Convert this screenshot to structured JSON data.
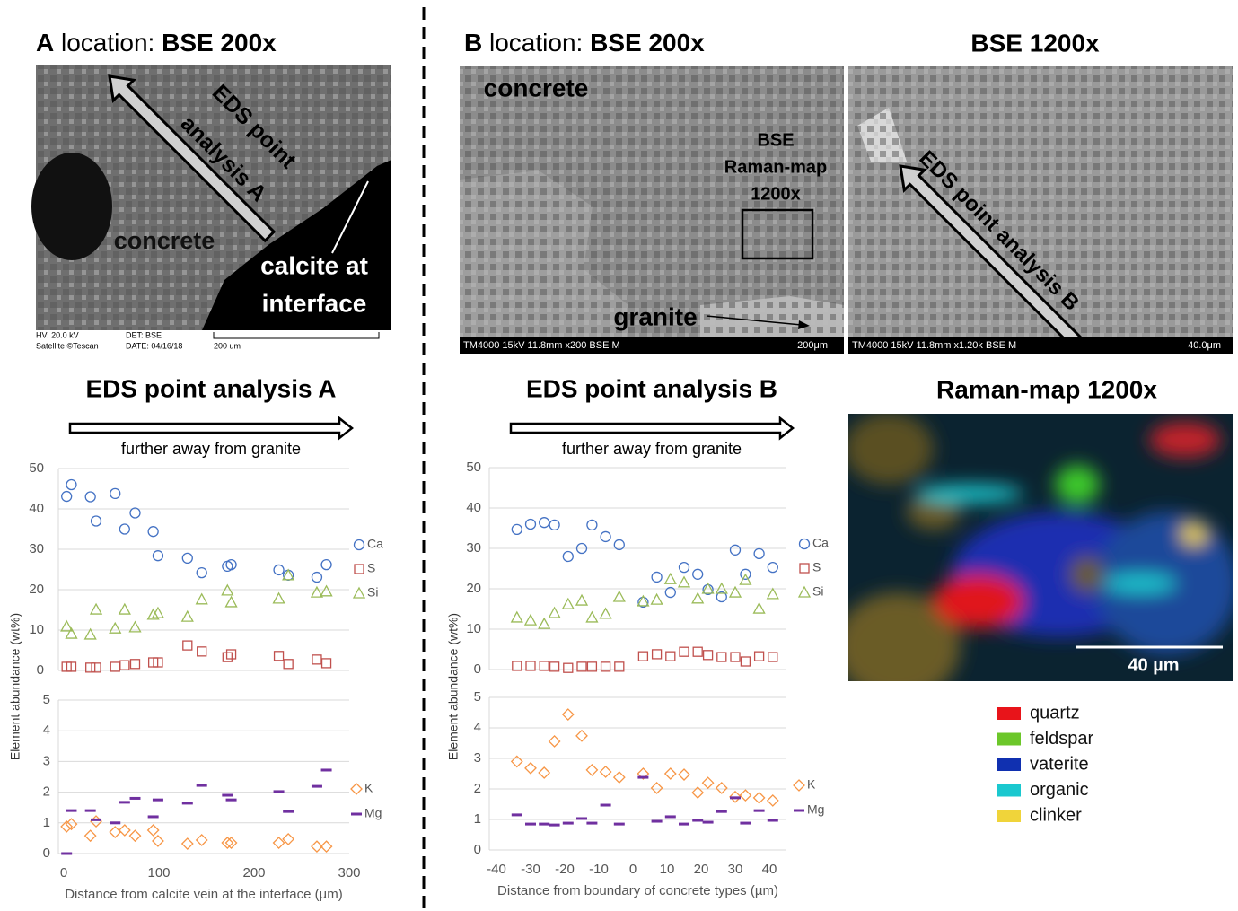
{
  "chart_data": [
    {
      "type": "scatter",
      "title": "EDS point analysis A",
      "subtitle": "further away from granite",
      "ylabel": "Element abundance (wt%)",
      "x": [
        3,
        8,
        28,
        34,
        54,
        64,
        75,
        94,
        99,
        130,
        145,
        172,
        176,
        226,
        236,
        266,
        276
      ],
      "xlim": [
        0,
        300
      ],
      "ylim": [
        0,
        50
      ],
      "yticks": [
        0,
        10,
        20,
        30,
        40,
        50
      ],
      "grid": true,
      "series": [
        {
          "name": "Ca",
          "color": "#4472c4",
          "marker": "circle",
          "values": [
            43.1,
            46,
            43,
            37,
            43.8,
            35,
            39,
            34.4,
            28.4,
            27.8,
            24.2,
            25.8,
            26.2,
            24.9,
            23.6,
            23.1,
            26.2
          ]
        },
        {
          "name": "S",
          "color": "#c0504d",
          "marker": "square",
          "values": [
            0.9,
            0.9,
            0.7,
            0.7,
            0.9,
            1.3,
            1.6,
            2,
            2,
            6.2,
            4.7,
            3.3,
            4,
            3.6,
            1.6,
            2.7,
            1.8
          ]
        },
        {
          "name": "Si",
          "color": "#9bbb59",
          "marker": "triangle",
          "values": [
            10.9,
            9.1,
            8.9,
            15.1,
            10.4,
            15.1,
            10.7,
            13.8,
            14.2,
            13.3,
            17.6,
            19.8,
            16.9,
            17.8,
            23.6,
            19.3,
            19.6
          ]
        }
      ]
    },
    {
      "type": "scatter",
      "xlabel": "Distance from calcite vein at the interface (µm)",
      "x": [
        3,
        8,
        28,
        34,
        54,
        64,
        75,
        94,
        99,
        130,
        145,
        172,
        176,
        226,
        236,
        266,
        276
      ],
      "xlim": [
        0,
        300
      ],
      "xticks": [
        0,
        100,
        200,
        300
      ],
      "ylim": [
        0,
        5
      ],
      "yticks": [
        0,
        1,
        2,
        3,
        4,
        5
      ],
      "grid": true,
      "series": [
        {
          "name": "K",
          "color": "#f79646",
          "marker": "diamond",
          "values": [
            0.88,
            0.96,
            0.58,
            1.05,
            0.7,
            0.76,
            0.58,
            0.76,
            0.41,
            0.32,
            0.44,
            0.35,
            0.35,
            0.35,
            0.47,
            0.23,
            0.23
          ]
        },
        {
          "name": "Mg",
          "color": "#7030a0",
          "marker": "dash",
          "values": [
            0,
            1.4,
            1.4,
            1.1,
            1.0,
            1.67,
            1.8,
            1.2,
            1.75,
            1.64,
            2.22,
            1.9,
            1.75,
            2.02,
            1.37,
            2.19,
            2.72
          ]
        }
      ]
    },
    {
      "type": "scatter",
      "title": "EDS point analysis B",
      "subtitle": "further away from granite",
      "ylabel": "Element abundance (wt%)",
      "x": [
        -34,
        -30,
        -26,
        -23,
        -19,
        -15,
        -12,
        -8,
        -4,
        3,
        7,
        11,
        15,
        19,
        22,
        26,
        30,
        33,
        37,
        41
      ],
      "xlim": [
        -40,
        45
      ],
      "ylim": [
        0,
        50
      ],
      "yticks": [
        0,
        10,
        20,
        30,
        40,
        50
      ],
      "grid": true,
      "series": [
        {
          "name": "Ca",
          "color": "#4472c4",
          "marker": "circle",
          "values": [
            34.7,
            36,
            36.4,
            35.8,
            28,
            30,
            35.8,
            32.9,
            30.9,
            16.7,
            22.9,
            19.1,
            25.3,
            23.6,
            19.8,
            18,
            29.6,
            23.6,
            28.7,
            25.3
          ]
        },
        {
          "name": "S",
          "color": "#c0504d",
          "marker": "square",
          "values": [
            0.9,
            0.9,
            0.9,
            0.7,
            0.4,
            0.7,
            0.7,
            0.7,
            0.7,
            3.3,
            3.8,
            3.3,
            4.4,
            4.4,
            3.6,
            3.1,
            3.1,
            2,
            3.3,
            3.1
          ]
        },
        {
          "name": "Si",
          "color": "#9bbb59",
          "marker": "triangle",
          "values": [
            12.9,
            12.2,
            11.3,
            14,
            16.2,
            17.1,
            12.9,
            13.8,
            18,
            16.9,
            17.3,
            22.4,
            21.6,
            17.6,
            20,
            20,
            19.1,
            22.2,
            15.1,
            18.7
          ]
        }
      ]
    },
    {
      "type": "scatter",
      "xlabel": "Distance from boundary of concrete types (µm)",
      "x": [
        -34,
        -30,
        -26,
        -23,
        -19,
        -15,
        -12,
        -8,
        -4,
        3,
        7,
        11,
        15,
        19,
        22,
        26,
        30,
        33,
        37,
        41
      ],
      "xlim": [
        -40,
        45
      ],
      "xticks": [
        -40,
        -30,
        -20,
        -10,
        0,
        10,
        20,
        30,
        40
      ],
      "ylim": [
        0,
        5
      ],
      "yticks": [
        0,
        1,
        2,
        3,
        4,
        5
      ],
      "grid": true,
      "series": [
        {
          "name": "K",
          "color": "#f79646",
          "marker": "diamond",
          "values": [
            2.9,
            2.68,
            2.53,
            3.56,
            4.44,
            3.74,
            2.62,
            2.56,
            2.38,
            2.5,
            2.03,
            2.5,
            2.47,
            1.88,
            2.2,
            2.03,
            1.74,
            1.79,
            1.71,
            1.62
          ]
        },
        {
          "name": "Mg",
          "color": "#7030a0",
          "marker": "dash",
          "values": [
            1.15,
            0.85,
            0.85,
            0.82,
            0.88,
            1.03,
            0.88,
            1.47,
            0.85,
            2.38,
            0.94,
            1.09,
            0.85,
            0.97,
            0.91,
            1.26,
            1.71,
            0.88,
            1.29,
            0.97
          ]
        }
      ]
    }
  ],
  "panels": {
    "a_heading": [
      "A",
      "location:",
      "BSE 200x"
    ],
    "a_image": {
      "arrow_label": [
        "EDS point",
        "analysis A"
      ],
      "concrete": "concrete",
      "calcite": [
        "calcite at",
        "interface"
      ],
      "footer": [
        "HV: 20.0 kV",
        "Satellite ©Tescan",
        "DET: BSE",
        "DATE: 04/16/18",
        "200 um"
      ]
    },
    "b_heading": [
      "B",
      "location:",
      "BSE 200x"
    ],
    "b_image": {
      "concrete": "concrete",
      "box_label": [
        "BSE",
        "Raman-map",
        "1200x"
      ],
      "granite": "granite",
      "footer": [
        "TM4000 15kV 11.8mm x200 BSE M",
        "200μm"
      ]
    },
    "c_heading": "BSE 1200x",
    "c_image": {
      "arrow_label": "EDS point analysis B",
      "footer": [
        "TM4000 15kV 11.8mm x1.20k BSE M",
        "40.0μm"
      ]
    },
    "raman": {
      "heading": "Raman-map 1200x",
      "scale": "40 µm",
      "legend": [
        {
          "label": "quartz",
          "color": "#e8141a"
        },
        {
          "label": "feldspar",
          "color": "#6cc72a"
        },
        {
          "label": "vaterite",
          "color": "#1030b0"
        },
        {
          "label": "organic",
          "color": "#1ac8cf"
        },
        {
          "label": "clinker",
          "color": "#f0d43a"
        }
      ]
    }
  }
}
